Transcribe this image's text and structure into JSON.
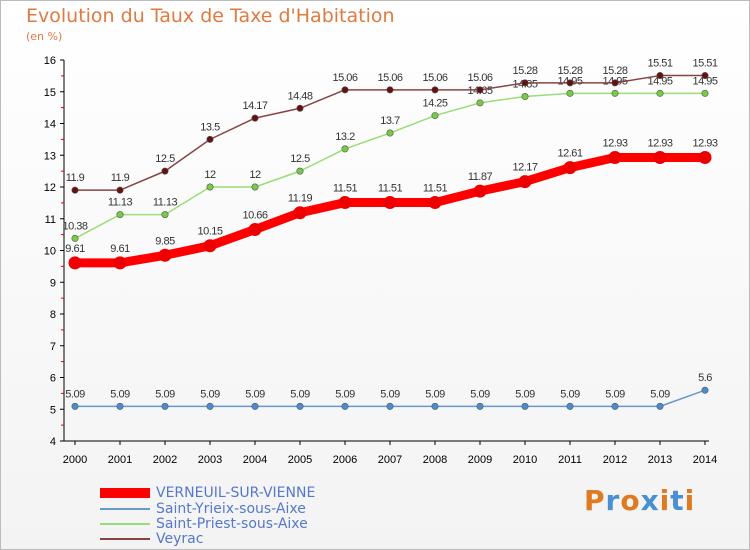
{
  "title": "Evolution du Taux de Taxe d'Habitation",
  "unit_label": "(en %)",
  "logo_text": "Proxiti",
  "chart_data": {
    "type": "line",
    "title": "Evolution du Taux de Taxe d'Habitation",
    "ylabel": "(en %)",
    "xlabel": "",
    "ylim": [
      4,
      16
    ],
    "yticks": [
      4,
      5,
      6,
      7,
      8,
      9,
      10,
      11,
      12,
      13,
      14,
      15,
      16
    ],
    "grid": false,
    "legend_position": "bottom-left",
    "categories": [
      "2000",
      "2001",
      "2002",
      "2003",
      "2004",
      "2005",
      "2006",
      "2007",
      "2008",
      "2009",
      "2010",
      "2011",
      "2012",
      "2013",
      "2014"
    ],
    "series": [
      {
        "name": "VERNEUIL-SUR-VIENNE",
        "color": "#ff0000",
        "point_color": "#ee0000",
        "emphasis": "thick",
        "values": [
          9.61,
          9.61,
          9.85,
          10.15,
          10.66,
          11.19,
          11.51,
          11.51,
          11.51,
          11.87,
          12.17,
          12.61,
          12.93,
          12.93,
          12.93
        ],
        "labels": [
          "9.61",
          "9.61",
          "9.85",
          "10.15",
          "10.66",
          "11.19",
          "11.51",
          "11.51",
          "11.51",
          "11.87",
          "12.17",
          "12.61",
          "12.93",
          "12.93",
          "12.93"
        ]
      },
      {
        "name": "Saint-Yrieix-sous-Aixe",
        "color": "#6699cc",
        "point_color": "#4a8cd0",
        "emphasis": "thin",
        "values": [
          5.09,
          5.09,
          5.09,
          5.09,
          5.09,
          5.09,
          5.09,
          5.09,
          5.09,
          5.09,
          5.09,
          5.09,
          5.09,
          5.09,
          5.6
        ],
        "labels": [
          "5.09",
          "5.09",
          "5.09",
          "5.09",
          "5.09",
          "5.09",
          "5.09",
          "5.09",
          "5.09",
          "5.09",
          "5.09",
          "5.09",
          "5.09",
          "5.09",
          "5.6"
        ]
      },
      {
        "name": "Saint-Priest-sous-Aixe",
        "color": "#99dd77",
        "point_color": "#77cc44",
        "emphasis": "thin",
        "values": [
          10.38,
          11.13,
          11.13,
          12,
          12,
          12.5,
          13.2,
          13.7,
          14.25,
          14.65,
          14.85,
          14.95,
          14.95,
          14.95,
          14.95
        ],
        "labels": [
          "10.38",
          "11.13",
          "11.13",
          "12",
          "12",
          "12.5",
          "13.2",
          "13.7",
          "14.25",
          "14.65",
          "14.85",
          "14.95",
          "14.95",
          "14.95",
          "14.95"
        ]
      },
      {
        "name": "Veyrac",
        "color": "#884444",
        "point_color": "#661111",
        "emphasis": "thin",
        "values": [
          11.9,
          11.9,
          12.5,
          13.5,
          14.17,
          14.48,
          15.06,
          15.06,
          15.06,
          15.06,
          15.28,
          15.28,
          15.28,
          15.51,
          15.51
        ],
        "labels": [
          "11.9",
          "11.9",
          "12.5",
          "13.5",
          "14.17",
          "14.48",
          "15.06",
          "15.06",
          "15.06",
          "15.06",
          "15.28",
          "15.28",
          "15.28",
          "15.51",
          "15.51"
        ]
      }
    ]
  },
  "legend": [
    {
      "label": "VERNEUIL-SUR-VIENNE",
      "color": "#ff0000",
      "emphasis": "thick"
    },
    {
      "label": "Saint-Yrieix-sous-Aixe",
      "color": "#6699cc",
      "emphasis": "thin"
    },
    {
      "label": "Saint-Priest-sous-Aixe",
      "color": "#99dd77",
      "emphasis": "thin"
    },
    {
      "label": "Veyrac",
      "color": "#884444",
      "emphasis": "thin"
    }
  ],
  "logo_letter_colors": [
    "#e07a20",
    "#4a90d0",
    "#e07a20",
    "#4a90d0",
    "#e07a20",
    "#4a90d0",
    "#e07a20"
  ]
}
